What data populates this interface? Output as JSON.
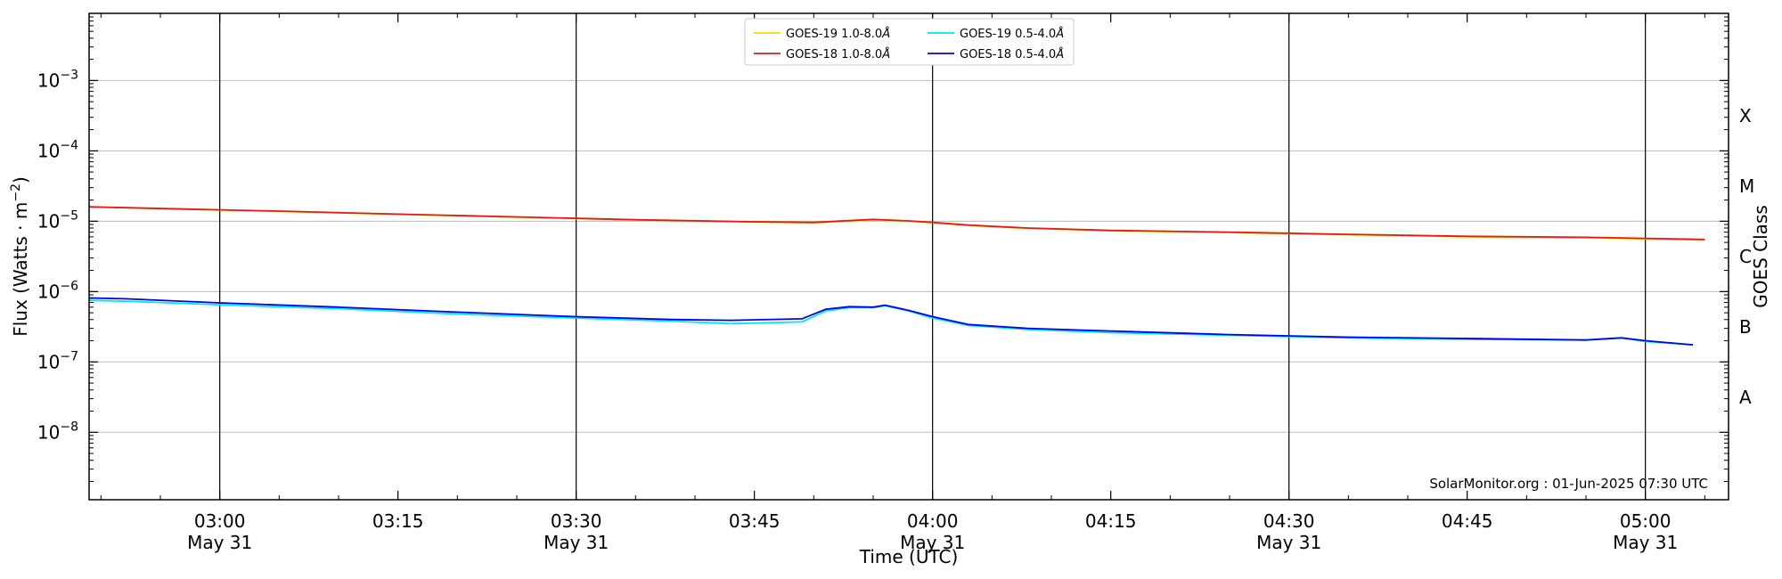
{
  "chart_data": {
    "type": "line",
    "title": "",
    "xlabel": "Time (UTC)",
    "ylabel": "Flux (Watts · m⁻²)",
    "ylabel_base": "Flux (Watts · m",
    "ylabel_exp": "−2",
    "ylabel_close": ")",
    "y2label": "GOES Class",
    "yscale": "log",
    "ylim": [
      1.1e-09,
      0.009
    ],
    "xlim": [
      "02:49",
      "05:07"
    ],
    "x_ticks": [
      {
        "time": "03:00",
        "line1": "03:00",
        "line2": "May 31"
      },
      {
        "time": "03:15",
        "line1": "03:15",
        "line2": ""
      },
      {
        "time": "03:30",
        "line1": "03:30",
        "line2": "May 31"
      },
      {
        "time": "03:45",
        "line1": "03:45",
        "line2": ""
      },
      {
        "time": "04:00",
        "line1": "04:00",
        "line2": "May 31"
      },
      {
        "time": "04:15",
        "line1": "04:15",
        "line2": ""
      },
      {
        "time": "04:30",
        "line1": "04:30",
        "line2": "May 31"
      },
      {
        "time": "04:45",
        "line1": "04:45",
        "line2": ""
      },
      {
        "time": "05:00",
        "line1": "05:00",
        "line2": "May 31"
      }
    ],
    "day_lines": [
      "03:00",
      "03:30",
      "04:00",
      "04:30",
      "05:00"
    ],
    "y_ticks": [
      {
        "value": 1e-08,
        "exp": "−8"
      },
      {
        "value": 1e-07,
        "exp": "−7"
      },
      {
        "value": 1e-06,
        "exp": "−6"
      },
      {
        "value": 1e-05,
        "exp": "−5"
      },
      {
        "value": 0.0001,
        "exp": "−4"
      },
      {
        "value": 0.001,
        "exp": "−3"
      }
    ],
    "tick_base": "10",
    "goes_classes": [
      {
        "label": "A",
        "value": 3.16e-08
      },
      {
        "label": "B",
        "value": 3.16e-07
      },
      {
        "label": "C",
        "value": 3.16e-06
      },
      {
        "label": "M",
        "value": 3.16e-05
      },
      {
        "label": "X",
        "value": 0.000316
      }
    ],
    "grid": true,
    "legend_placement": "top-center",
    "legend": [
      {
        "name": "GOES-19 1.0-8.0",
        "unit": "Å",
        "color": "#ffd700"
      },
      {
        "name": "GOES-18 1.0-8.0",
        "unit": "Å",
        "color": "#e31a1c"
      },
      {
        "name": "GOES-19 0.5-4.0",
        "unit": "Å",
        "color": "#00e5ee"
      },
      {
        "name": "GOES-18 0.5-4.0",
        "unit": "Å",
        "color": "#0000ee"
      }
    ],
    "stamp": "SolarMonitor.org : 01-Jun-2025 07:30 UTC",
    "series": [
      {
        "name": "GOES-19 1.0-8.0Å",
        "color": "#ffd700",
        "x": [
          "02:49",
          "02:57",
          "03:05",
          "03:15",
          "03:25",
          "03:35",
          "03:45",
          "03:50",
          "03:52",
          "03:55",
          "03:58",
          "04:00",
          "04:03",
          "04:08",
          "04:15",
          "04:25",
          "04:35",
          "04:45",
          "04:55",
          "05:00",
          "05:05"
        ],
        "values": [
          1.6e-05,
          1.48e-05,
          1.38e-05,
          1.25e-05,
          1.14e-05,
          1.04e-05,
          9.7e-06,
          9.5e-06,
          9.9e-06,
          1.04e-05,
          1e-05,
          9.5e-06,
          8.7e-06,
          7.9e-06,
          7.3e-06,
          6.9e-06,
          6.4e-06,
          6e-06,
          5.8e-06,
          5.6e-06,
          5.4e-06
        ]
      },
      {
        "name": "GOES-18 1.0-8.0Å",
        "color": "#e31a1c",
        "x": [
          "02:49",
          "02:57",
          "03:05",
          "03:15",
          "03:25",
          "03:35",
          "03:45",
          "03:50",
          "03:52",
          "03:55",
          "03:58",
          "04:00",
          "04:03",
          "04:08",
          "04:15",
          "04:25",
          "04:35",
          "04:45",
          "04:55",
          "05:00",
          "05:05"
        ],
        "values": [
          1.6e-05,
          1.49e-05,
          1.39e-05,
          1.26e-05,
          1.15e-05,
          1.05e-05,
          9.8e-06,
          9.6e-06,
          1e-05,
          1.06e-05,
          1.01e-05,
          9.6e-06,
          8.8e-06,
          8e-06,
          7.4e-06,
          7e-06,
          6.5e-06,
          6.1e-06,
          5.9e-06,
          5.7e-06,
          5.5e-06
        ]
      },
      {
        "name": "GOES-19 0.5-4.0Å",
        "color": "#00e5ee",
        "x": [
          "02:49",
          "02:52",
          "03:00",
          "03:10",
          "03:20",
          "03:30",
          "03:38",
          "03:43",
          "03:49",
          "03:51",
          "03:53",
          "03:55",
          "03:56",
          "03:58",
          "04:00",
          "04:03",
          "04:08",
          "04:15",
          "04:25",
          "04:35",
          "04:45",
          "04:55",
          "04:58",
          "05:00",
          "05:04"
        ],
        "values": [
          7.5e-07,
          7.3e-07,
          6.5e-07,
          5.7e-07,
          4.8e-07,
          4.2e-07,
          3.8e-07,
          3.5e-07,
          3.7e-07,
          5.3e-07,
          5.9e-07,
          5.9e-07,
          6.3e-07,
          5.3e-07,
          4.2e-07,
          3.3e-07,
          2.9e-07,
          2.6e-07,
          2.4e-07,
          2.2e-07,
          2.1e-07,
          2.05e-07,
          2.2e-07,
          1.95e-07,
          1.75e-07
        ]
      },
      {
        "name": "GOES-18 0.5-4.0Å",
        "color": "#0000ee",
        "x": [
          "02:49",
          "02:52",
          "03:00",
          "03:10",
          "03:20",
          "03:30",
          "03:38",
          "03:43",
          "03:49",
          "03:51",
          "03:53",
          "03:55",
          "03:56",
          "03:58",
          "04:00",
          "04:03",
          "04:08",
          "04:15",
          "04:25",
          "04:35",
          "04:45",
          "04:55",
          "04:58",
          "05:00",
          "05:04"
        ],
        "values": [
          8.1e-07,
          7.9e-07,
          6.9e-07,
          6e-07,
          5.1e-07,
          4.4e-07,
          4e-07,
          3.9e-07,
          4.1e-07,
          5.6e-07,
          6.1e-07,
          6e-07,
          6.4e-07,
          5.4e-07,
          4.4e-07,
          3.4e-07,
          3e-07,
          2.75e-07,
          2.45e-07,
          2.25e-07,
          2.15e-07,
          2.05e-07,
          2.2e-07,
          2e-07,
          1.75e-07
        ]
      }
    ]
  }
}
